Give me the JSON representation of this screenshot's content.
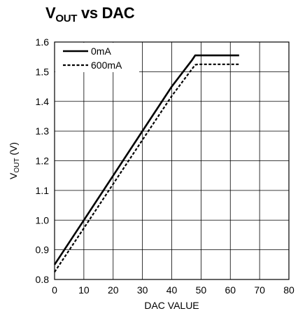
{
  "chart_data": {
    "type": "line",
    "title": {
      "main": "V",
      "main_sub": "OUT",
      "rest": " vs DAC"
    },
    "xlabel": "DAC VALUE",
    "ylabel": {
      "main": "V",
      "sub": "OUT",
      "rest": " (V)"
    },
    "xlim": [
      0,
      80
    ],
    "ylim": [
      0.8,
      1.6
    ],
    "xticks": [
      0,
      10,
      20,
      30,
      40,
      50,
      60,
      70,
      80
    ],
    "yticks": [
      0.8,
      0.9,
      1.0,
      1.1,
      1.2,
      1.3,
      1.4,
      1.5,
      1.6
    ],
    "xtick_labels": [
      "0",
      "10",
      "20",
      "30",
      "40",
      "50",
      "60",
      "70",
      "80"
    ],
    "ytick_labels": [
      "0.8",
      "0.9",
      "1.0",
      "1.1",
      "1.2",
      "1.3",
      "1.4",
      "1.5",
      "1.6"
    ],
    "grid": true,
    "legend_position": "top-left",
    "series": [
      {
        "name": "0mA",
        "style": "solid",
        "color": "#000000",
        "x": [
          0,
          10,
          20,
          30,
          40,
          47,
          48,
          49,
          55,
          63
        ],
        "y": [
          0.85,
          1.0,
          1.15,
          1.3,
          1.45,
          1.54,
          1.555,
          1.555,
          1.555,
          1.555
        ]
      },
      {
        "name": "600mA",
        "style": "dashed",
        "color": "#000000",
        "x": [
          0,
          10,
          20,
          30,
          40,
          47,
          48,
          49,
          55,
          63
        ],
        "y": [
          0.825,
          0.973,
          1.122,
          1.27,
          1.418,
          1.51,
          1.523,
          1.525,
          1.525,
          1.525
        ]
      }
    ]
  }
}
